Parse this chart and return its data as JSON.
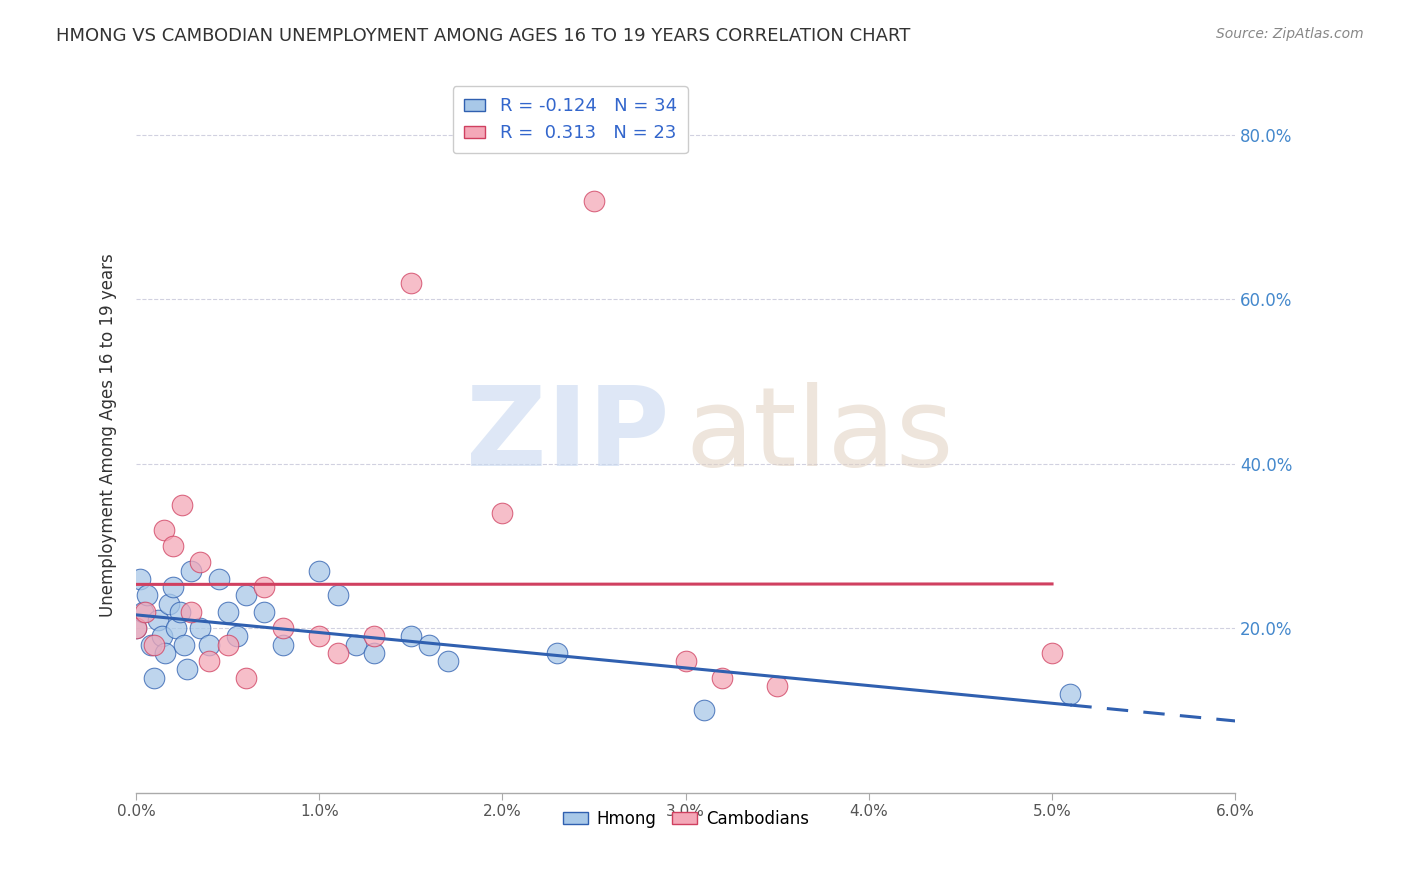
{
  "title": "HMONG VS CAMBODIAN UNEMPLOYMENT AMONG AGES 16 TO 19 YEARS CORRELATION CHART",
  "source": "Source: ZipAtlas.com",
  "ylabel": "Unemployment Among Ages 16 to 19 years",
  "x_tick_labels": [
    "0.0%",
    "1.0%",
    "2.0%",
    "3.0%",
    "4.0%",
    "5.0%",
    "6.0%"
  ],
  "x_ticks": [
    0.0,
    1.0,
    2.0,
    3.0,
    4.0,
    5.0,
    6.0
  ],
  "y_tick_labels_right": [
    "20.0%",
    "40.0%",
    "60.0%",
    "80.0%"
  ],
  "y_ticks": [
    20.0,
    40.0,
    60.0,
    80.0
  ],
  "xlim": [
    0.0,
    6.0
  ],
  "ylim": [
    0.0,
    87.0
  ],
  "hmong_R": -0.124,
  "hmong_N": 34,
  "cambodian_R": 0.313,
  "cambodian_N": 23,
  "hmong_color": "#a8c8e8",
  "cambodian_color": "#f4a8b8",
  "hmong_line_color": "#3060b0",
  "cambodian_line_color": "#d04060",
  "background_color": "#ffffff",
  "grid_color": "#ccccdd",
  "hmong_x": [
    0.0,
    0.02,
    0.04,
    0.06,
    0.08,
    0.1,
    0.12,
    0.14,
    0.16,
    0.18,
    0.2,
    0.22,
    0.24,
    0.26,
    0.28,
    0.3,
    0.35,
    0.4,
    0.45,
    0.5,
    0.55,
    0.6,
    0.7,
    0.8,
    1.0,
    1.1,
    1.2,
    1.3,
    1.5,
    1.6,
    1.7,
    2.3,
    3.1,
    5.1
  ],
  "hmong_y": [
    20.0,
    26.0,
    22.0,
    24.0,
    18.0,
    14.0,
    21.0,
    19.0,
    17.0,
    23.0,
    25.0,
    20.0,
    22.0,
    18.0,
    15.0,
    27.0,
    20.0,
    18.0,
    26.0,
    22.0,
    19.0,
    24.0,
    22.0,
    18.0,
    27.0,
    24.0,
    18.0,
    17.0,
    19.0,
    18.0,
    16.0,
    17.0,
    10.0,
    12.0
  ],
  "cambodian_x": [
    0.0,
    0.05,
    0.1,
    0.15,
    0.2,
    0.25,
    0.3,
    0.35,
    0.4,
    0.5,
    0.6,
    0.7,
    0.8,
    1.0,
    1.1,
    1.3,
    1.5,
    2.0,
    2.5,
    3.0,
    3.2,
    3.5,
    5.0
  ],
  "cambodian_y": [
    20.0,
    22.0,
    18.0,
    32.0,
    30.0,
    35.0,
    22.0,
    28.0,
    16.0,
    18.0,
    14.0,
    25.0,
    20.0,
    19.0,
    17.0,
    19.0,
    62.0,
    34.0,
    72.0,
    16.0,
    14.0,
    13.0,
    17.0
  ]
}
